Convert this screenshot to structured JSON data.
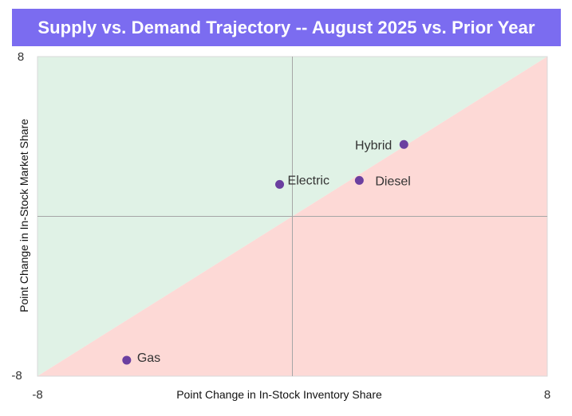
{
  "chart_data": {
    "type": "scatter",
    "title": "Supply vs. Demand Trajectory -- August 2025 vs. Prior Year",
    "xlabel": "Point Change in In-Stock Inventory Share",
    "ylabel": "Point Change in In-Stock Market Share",
    "xlim": [
      -8,
      8
    ],
    "ylim": [
      -8,
      8
    ],
    "x_ticks": [
      "-8",
      "8"
    ],
    "y_ticks": [
      "-8",
      "8"
    ],
    "grid": false,
    "quadrant_lines": {
      "x": 0,
      "y": 0
    },
    "regions": {
      "above_diagonal_color": "#e0f2e6",
      "below_diagonal_color": "#fdd9d6"
    },
    "marker_color": "#6b3fa0",
    "points": [
      {
        "label": "Hybrid",
        "x": 3.5,
        "y": 3.6
      },
      {
        "label": "Electric",
        "x": -0.4,
        "y": 1.6
      },
      {
        "label": "Diesel",
        "x": 2.1,
        "y": 1.8
      },
      {
        "label": "Gas",
        "x": -5.2,
        "y": -7.2
      }
    ]
  },
  "colors": {
    "title_bar": "#7b6cf0",
    "title_text": "#ffffff",
    "plot_border": "#d9d9d9",
    "quadrant_line": "#a6a6a6"
  }
}
